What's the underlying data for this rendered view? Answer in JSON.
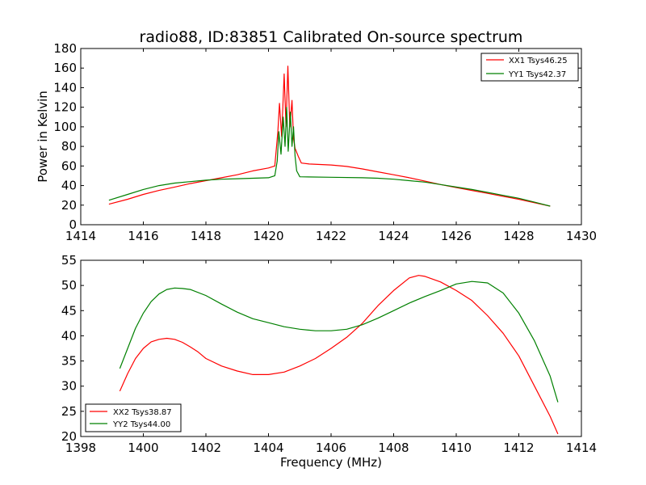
{
  "chart_data": [
    {
      "type": "line",
      "title": "radio88, ID:83851 Calibrated On-source spectrum",
      "xlabel": "",
      "ylabel": "Power in Kelvin",
      "xlim": [
        1414,
        1430
      ],
      "ylim": [
        0,
        180
      ],
      "xticks": [
        1414,
        1416,
        1418,
        1420,
        1422,
        1424,
        1426,
        1428,
        1430
      ],
      "yticks": [
        0,
        20,
        40,
        60,
        80,
        100,
        120,
        140,
        160,
        180
      ],
      "legend_position": "top-right",
      "series": [
        {
          "name": "XX1 Tsys46.25",
          "color": "#ff0000",
          "points": [
            [
              1414.9,
              21
            ],
            [
              1415.5,
              26
            ],
            [
              1416.0,
              31
            ],
            [
              1416.5,
              35
            ],
            [
              1417.0,
              38.5
            ],
            [
              1417.5,
              42
            ],
            [
              1418.0,
              45
            ],
            [
              1418.5,
              48
            ],
            [
              1419.0,
              51
            ],
            [
              1419.5,
              55
            ],
            [
              1420.0,
              58
            ],
            [
              1420.2,
              60
            ],
            [
              1420.3,
              95
            ],
            [
              1420.35,
              124
            ],
            [
              1420.42,
              90
            ],
            [
              1420.5,
              154
            ],
            [
              1420.56,
              100
            ],
            [
              1420.62,
              162
            ],
            [
              1420.68,
              100
            ],
            [
              1420.75,
              127
            ],
            [
              1420.8,
              88
            ],
            [
              1420.85,
              78
            ],
            [
              1420.95,
              70
            ],
            [
              1421.05,
              63
            ],
            [
              1421.3,
              62
            ],
            [
              1422.0,
              61
            ],
            [
              1422.5,
              59.5
            ],
            [
              1423.0,
              57
            ],
            [
              1423.5,
              54
            ],
            [
              1424.0,
              51
            ],
            [
              1424.5,
              48
            ],
            [
              1425.0,
              44.5
            ],
            [
              1425.5,
              41
            ],
            [
              1426.0,
              38
            ],
            [
              1426.5,
              35
            ],
            [
              1427.0,
              32
            ],
            [
              1427.5,
              29
            ],
            [
              1428.0,
              26
            ],
            [
              1428.5,
              22.5
            ],
            [
              1429.0,
              19
            ]
          ]
        },
        {
          "name": "YY1 Tsys42.37",
          "color": "#008000",
          "points": [
            [
              1414.9,
              25
            ],
            [
              1415.5,
              31
            ],
            [
              1416.0,
              36
            ],
            [
              1416.5,
              40
            ],
            [
              1417.0,
              42.5
            ],
            [
              1417.5,
              44
            ],
            [
              1418.0,
              45.5
            ],
            [
              1418.5,
              46.5
            ],
            [
              1419.0,
              47
            ],
            [
              1419.5,
              47.5
            ],
            [
              1420.0,
              48
            ],
            [
              1420.2,
              50
            ],
            [
              1420.28,
              65
            ],
            [
              1420.33,
              95
            ],
            [
              1420.4,
              72
            ],
            [
              1420.47,
              110
            ],
            [
              1420.53,
              80
            ],
            [
              1420.58,
              120
            ],
            [
              1420.63,
              75
            ],
            [
              1420.7,
              115
            ],
            [
              1420.75,
              80
            ],
            [
              1420.8,
              100
            ],
            [
              1420.85,
              70
            ],
            [
              1420.9,
              55
            ],
            [
              1421.0,
              49
            ],
            [
              1422.0,
              48.5
            ],
            [
              1423.0,
              48
            ],
            [
              1423.5,
              47.5
            ],
            [
              1424.0,
              46.5
            ],
            [
              1424.5,
              45
            ],
            [
              1425.0,
              43.5
            ],
            [
              1425.5,
              41
            ],
            [
              1426.0,
              38.5
            ],
            [
              1426.5,
              36
            ],
            [
              1427.0,
              33
            ],
            [
              1427.5,
              30
            ],
            [
              1428.0,
              27
            ],
            [
              1428.5,
              23
            ],
            [
              1429.0,
              19
            ]
          ]
        }
      ]
    },
    {
      "type": "line",
      "title": "",
      "xlabel": "Frequency (MHz)",
      "ylabel": "",
      "xlim": [
        1398,
        1414
      ],
      "ylim": [
        20,
        55
      ],
      "xticks": [
        1398,
        1400,
        1402,
        1404,
        1406,
        1408,
        1410,
        1412,
        1414
      ],
      "yticks": [
        20,
        25,
        30,
        35,
        40,
        45,
        50,
        55
      ],
      "legend_position": "lower-left",
      "series": [
        {
          "name": "XX2 Tsys38.87",
          "color": "#ff0000",
          "points": [
            [
              1399.25,
              29
            ],
            [
              1399.5,
              32.5
            ],
            [
              1399.75,
              35.5
            ],
            [
              1400.0,
              37.5
            ],
            [
              1400.25,
              38.8
            ],
            [
              1400.5,
              39.3
            ],
            [
              1400.75,
              39.5
            ],
            [
              1401.0,
              39.3
            ],
            [
              1401.25,
              38.7
            ],
            [
              1401.5,
              37.8
            ],
            [
              1401.75,
              36.8
            ],
            [
              1402.0,
              35.5
            ],
            [
              1402.5,
              34
            ],
            [
              1403.0,
              33
            ],
            [
              1403.5,
              32.3
            ],
            [
              1404.0,
              32.3
            ],
            [
              1404.5,
              32.8
            ],
            [
              1405.0,
              34
            ],
            [
              1405.5,
              35.5
            ],
            [
              1406.0,
              37.5
            ],
            [
              1406.5,
              39.7
            ],
            [
              1407.0,
              42.5
            ],
            [
              1407.5,
              46
            ],
            [
              1408.0,
              49
            ],
            [
              1408.5,
              51.5
            ],
            [
              1408.8,
              52
            ],
            [
              1409.0,
              51.8
            ],
            [
              1409.5,
              50.7
            ],
            [
              1410.0,
              49
            ],
            [
              1410.5,
              47
            ],
            [
              1411.0,
              44
            ],
            [
              1411.5,
              40.5
            ],
            [
              1412.0,
              36
            ],
            [
              1412.5,
              30
            ],
            [
              1413.0,
              24
            ],
            [
              1413.25,
              20.5
            ]
          ]
        },
        {
          "name": "YY2 Tsys44.00",
          "color": "#008000",
          "points": [
            [
              1399.25,
              33.5
            ],
            [
              1399.5,
              37.5
            ],
            [
              1399.75,
              41.5
            ],
            [
              1400.0,
              44.5
            ],
            [
              1400.25,
              46.8
            ],
            [
              1400.5,
              48.3
            ],
            [
              1400.75,
              49.2
            ],
            [
              1401.0,
              49.5
            ],
            [
              1401.25,
              49.4
            ],
            [
              1401.5,
              49.2
            ],
            [
              1402.0,
              48
            ],
            [
              1402.5,
              46.3
            ],
            [
              1403.0,
              44.7
            ],
            [
              1403.5,
              43.4
            ],
            [
              1404.0,
              42.6
            ],
            [
              1404.5,
              41.8
            ],
            [
              1405.0,
              41.3
            ],
            [
              1405.5,
              41
            ],
            [
              1406.0,
              41
            ],
            [
              1406.5,
              41.3
            ],
            [
              1407.0,
              42.2
            ],
            [
              1407.5,
              43.5
            ],
            [
              1408.0,
              45
            ],
            [
              1408.5,
              46.5
            ],
            [
              1409.0,
              47.8
            ],
            [
              1409.5,
              49
            ],
            [
              1410.0,
              50.3
            ],
            [
              1410.5,
              50.8
            ],
            [
              1411.0,
              50.5
            ],
            [
              1411.5,
              48.5
            ],
            [
              1412.0,
              44.5
            ],
            [
              1412.5,
              39
            ],
            [
              1413.0,
              32
            ],
            [
              1413.25,
              26.8
            ]
          ]
        }
      ]
    }
  ]
}
